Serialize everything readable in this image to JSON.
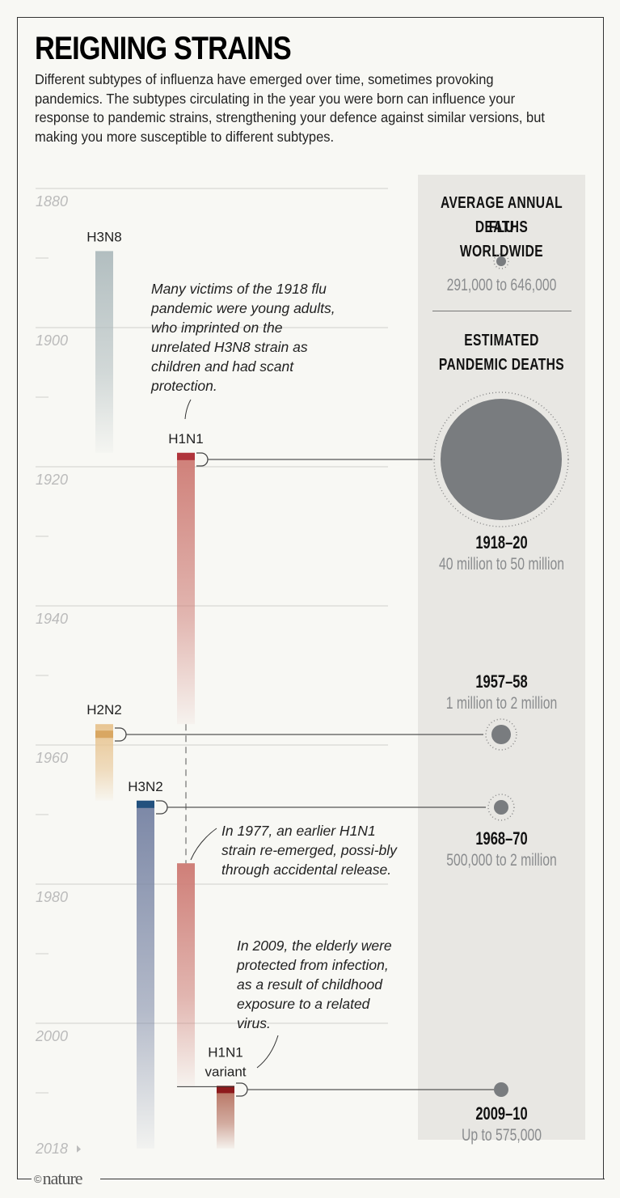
{
  "title": "REIGNING STRAINS",
  "intro": "Different subtypes of influenza have emerged over time, sometimes provoking pandemics. The subtypes circulating in the year you were born can influence your response to pandemic strains, strengthening your defence against similar versions, but making you more susceptible to different subtypes.",
  "brand": "nature",
  "brand_symbol": "©",
  "sidebar": {
    "heading_annual": "AVERAGE ANNUAL FLU DEATHS WORLDWIDE",
    "heading_annual_line1": "AVERAGE ANNUAL FLU",
    "heading_annual_line2": "DEATHS WORLDWIDE",
    "annual_value": "291,000 to 646,000",
    "heading_pandemic_line1": "ESTIMATED",
    "heading_pandemic_line2": "PANDEMIC DEATHS"
  },
  "notes": {
    "note_1918": "Many victims of the 1918 flu pandemic were young adults, who imprinted on the unrelated H3N8 strain as children and had scant protection.",
    "note_1977": "In 1977, an earlier H1N1 strain re-emerged, possi-bly through accidental release.",
    "note_2009": "In 2009, the elderly were protected from infection, as a result of childhood exposure to a related virus."
  },
  "colors": {
    "H3N8": "#b2bec0",
    "H1N1": "#cf7f78",
    "H1N1_dark": "#b0343b",
    "H2N2": "#e8c592",
    "H2N2_dark": "#d9a762",
    "H3N2": "#7b87a6",
    "H3N2_dark": "#23517e",
    "H1N1_variant": "#b46e5c",
    "H1N1_variant_dark": "#8e1a1c",
    "bubble": "#797c7f"
  },
  "chart_data": {
    "type": "timeline",
    "title": "REIGNING STRAINS",
    "y_axis": {
      "range": [
        1880,
        2018
      ],
      "tick_labels": [
        "1880",
        "1900",
        "1920",
        "1940",
        "1960",
        "1980",
        "2000",
        "2018"
      ],
      "minor_ticks": [
        1890,
        1910,
        1930,
        1950,
        1970,
        1990,
        2010
      ]
    },
    "strains": [
      {
        "name": "H3N8",
        "label": "H3N8",
        "start": 1889,
        "fade_end": 1918,
        "column": 0,
        "color_key": "H3N8",
        "pandemic": null
      },
      {
        "name": "H1N1",
        "label": "H1N1",
        "start": 1918,
        "fade_end": 1957,
        "column": 2,
        "color_key": "H1N1",
        "pandemic": "1918-20"
      },
      {
        "name": "H2N2",
        "label": "H2N2",
        "start": 1957,
        "fade_end": 1968,
        "column": 0,
        "color_key": "H2N2",
        "pandemic": "1957-58"
      },
      {
        "name": "H3N2",
        "label": "H3N2",
        "start": 1968,
        "fade_end": 2018,
        "column": 1,
        "color_key": "H3N2",
        "pandemic": "1968-70"
      },
      {
        "name": "H1N1 (re-emerged)",
        "label": "",
        "start": 1977,
        "fade_end": 2009,
        "column": 2,
        "color_key": "H1N1",
        "pandemic": null
      },
      {
        "name": "H1N1 variant",
        "label_line1": "H1N1",
        "label_line2": "variant",
        "start": 2009,
        "fade_end": 2018,
        "column": 3,
        "color_key": "H1N1_variant",
        "pandemic": "2009-10"
      }
    ],
    "pandemics": [
      {
        "years": "1918–20",
        "deaths": "40 million to 50 million",
        "deaths_low": 40000000,
        "deaths_high": 50000000,
        "strain": "H1N1",
        "year": 1918
      },
      {
        "years": "1957–58",
        "deaths": "1 million to 2 million",
        "deaths_low": 1000000,
        "deaths_high": 2000000,
        "strain": "H2N2",
        "year": 1957
      },
      {
        "years": "1968–70",
        "deaths": "500,000 to 2 million",
        "deaths_low": 500000,
        "deaths_high": 2000000,
        "strain": "H3N2",
        "year": 1968
      },
      {
        "years": "2009–10",
        "deaths": "Up to 575,000",
        "deaths_low": 0,
        "deaths_high": 575000,
        "strain": "H1N1 variant",
        "year": 2009
      }
    ],
    "annual_average": {
      "deaths": "291,000 to 646,000",
      "deaths_low": 291000,
      "deaths_high": 646000
    }
  }
}
